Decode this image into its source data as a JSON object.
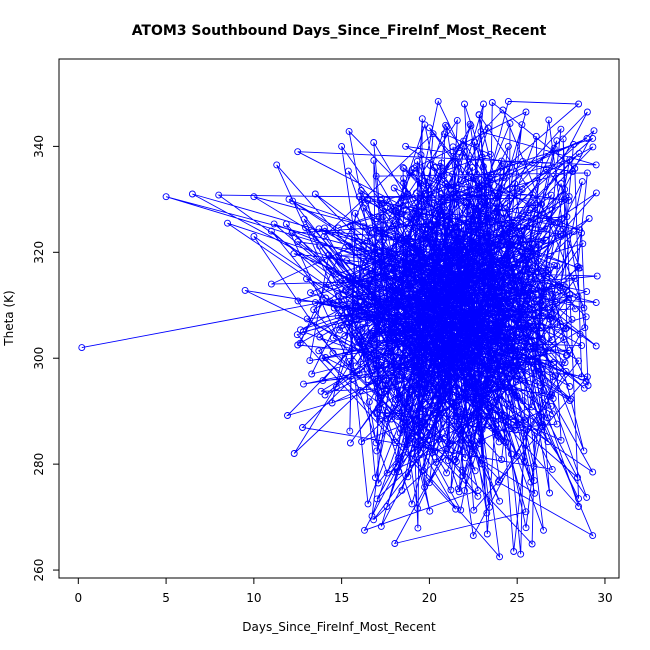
{
  "chart_data": {
    "type": "line",
    "title": "ATOM3 Southbound Days_Since_FireInf_Most_Recent",
    "xlabel": "Days_Since_FireInf_Most_Recent",
    "ylabel": "Theta (K)",
    "xlim": [
      -1.1,
      30.8
    ],
    "ylim": [
      258.5,
      356.5
    ],
    "xticks": [
      0,
      5,
      10,
      15,
      20,
      25,
      30
    ],
    "yticks": [
      260,
      280,
      300,
      320,
      340
    ],
    "grid": false,
    "legend": "none",
    "series_color": "#0000ff",
    "marker": "open-circle",
    "random_seed": 20240511,
    "series": [
      {
        "points": [
          [
            0.2,
            302.0
          ],
          [
            27.0,
            303.5
          ],
          [
            20.5,
            348.5
          ],
          [
            22.0,
            348.0
          ],
          [
            24.5,
            348.5
          ],
          [
            28.5,
            348.0
          ],
          [
            25.5,
            346.5
          ],
          [
            29.0,
            346.5
          ],
          [
            29.3,
            341.5
          ],
          [
            24.5,
            340.0
          ],
          [
            20.0,
            343.5
          ],
          [
            26.8,
            345.0
          ],
          [
            18.5,
            336.0
          ],
          [
            22.0,
            339.0
          ],
          [
            11.3,
            336.5
          ],
          [
            12.5,
            339.0
          ],
          [
            15.0,
            340.0
          ],
          [
            23.0,
            338.0
          ],
          [
            28.0,
            337.5
          ],
          [
            29.5,
            336.5
          ],
          [
            5.0,
            330.5
          ],
          [
            6.5,
            331.0
          ],
          [
            8.0,
            330.8
          ],
          [
            10.0,
            330.5
          ],
          [
            12.0,
            330.0
          ],
          [
            13.5,
            331.0
          ],
          [
            16.0,
            330.5
          ],
          [
            19.5,
            333.0
          ],
          [
            22.5,
            334.0
          ],
          [
            25.0,
            332.0
          ],
          [
            27.5,
            333.0
          ],
          [
            29.0,
            335.0
          ],
          [
            8.5,
            325.5
          ],
          [
            10.0,
            323.0
          ],
          [
            11.0,
            324.0
          ],
          [
            12.5,
            322.0
          ],
          [
            14.0,
            323.0
          ],
          [
            15.5,
            325.0
          ],
          [
            17.0,
            321.0
          ],
          [
            18.5,
            320.0
          ],
          [
            20.0,
            322.5
          ],
          [
            21.5,
            321.0
          ],
          [
            23.0,
            323.0
          ],
          [
            24.5,
            322.0
          ],
          [
            26.0,
            320.5
          ],
          [
            27.5,
            323.0
          ],
          [
            28.5,
            317.0
          ],
          [
            26.5,
            316.0
          ],
          [
            9.5,
            312.8
          ],
          [
            11.0,
            314.0
          ],
          [
            13.0,
            315.0
          ],
          [
            14.5,
            316.5
          ],
          [
            16.0,
            317.0
          ],
          [
            17.5,
            315.5
          ],
          [
            19.0,
            314.0
          ],
          [
            20.5,
            316.0
          ],
          [
            22.0,
            315.0
          ],
          [
            23.5,
            317.0
          ],
          [
            25.0,
            314.5
          ],
          [
            26.5,
            313.0
          ],
          [
            28.0,
            312.0
          ],
          [
            29.5,
            310.5
          ],
          [
            28.8,
            309.5
          ],
          [
            29.5,
            302.3
          ],
          [
            13.5,
            310.5
          ],
          [
            15.0,
            309.0
          ],
          [
            16.5,
            308.0
          ],
          [
            18.0,
            310.0
          ],
          [
            19.5,
            307.0
          ],
          [
            21.0,
            306.5
          ],
          [
            22.5,
            308.0
          ],
          [
            24.0,
            305.5
          ],
          [
            25.5,
            306.0
          ],
          [
            27.0,
            307.0
          ],
          [
            28.0,
            301.5
          ],
          [
            12.5,
            302.5
          ],
          [
            14.5,
            301.0
          ],
          [
            16.0,
            303.0
          ],
          [
            17.5,
            300.0
          ],
          [
            19.0,
            301.5
          ],
          [
            20.5,
            299.5
          ],
          [
            22.0,
            302.0
          ],
          [
            23.5,
            300.5
          ],
          [
            25.0,
            298.5
          ],
          [
            26.5,
            301.0
          ],
          [
            28.5,
            299.5
          ],
          [
            29.0,
            296.5
          ],
          [
            16.0,
            297.0
          ],
          [
            17.5,
            295.0
          ],
          [
            19.0,
            294.0
          ],
          [
            20.5,
            296.0
          ],
          [
            22.0,
            293.5
          ],
          [
            23.5,
            295.0
          ],
          [
            25.0,
            292.5
          ],
          [
            26.5,
            294.0
          ],
          [
            28.0,
            292.0
          ],
          [
            27.0,
            289.5
          ],
          [
            17.0,
            289.5
          ],
          [
            18.5,
            288.0
          ],
          [
            20.0,
            287.0
          ],
          [
            21.5,
            289.0
          ],
          [
            23.0,
            286.5
          ],
          [
            24.5,
            288.0
          ],
          [
            26.0,
            286.0
          ],
          [
            27.5,
            284.5
          ],
          [
            15.5,
            284.0
          ],
          [
            12.3,
            282.0
          ],
          [
            17.0,
            282.5
          ],
          [
            19.0,
            281.0
          ],
          [
            21.0,
            283.0
          ],
          [
            23.0,
            280.0
          ],
          [
            25.0,
            281.5
          ],
          [
            27.0,
            279.0
          ],
          [
            28.8,
            282.5
          ],
          [
            29.3,
            278.5
          ],
          [
            18.0,
            278.5
          ],
          [
            20.0,
            276.5
          ],
          [
            22.0,
            275.0
          ],
          [
            24.0,
            277.0
          ],
          [
            26.0,
            274.5
          ],
          [
            28.5,
            273.5
          ],
          [
            16.5,
            272.5
          ],
          [
            19.0,
            272.5
          ],
          [
            21.5,
            271.5
          ],
          [
            24.0,
            273.0
          ],
          [
            25.5,
            271.0
          ],
          [
            28.5,
            272.0
          ],
          [
            16.3,
            267.5
          ],
          [
            22.5,
            266.5
          ],
          [
            23.3,
            266.8
          ],
          [
            25.5,
            268.0
          ],
          [
            26.5,
            267.5
          ],
          [
            29.3,
            266.5
          ],
          [
            24.0,
            262.5
          ],
          [
            24.8,
            263.5
          ],
          [
            25.2,
            263.0
          ]
        ]
      }
    ]
  }
}
